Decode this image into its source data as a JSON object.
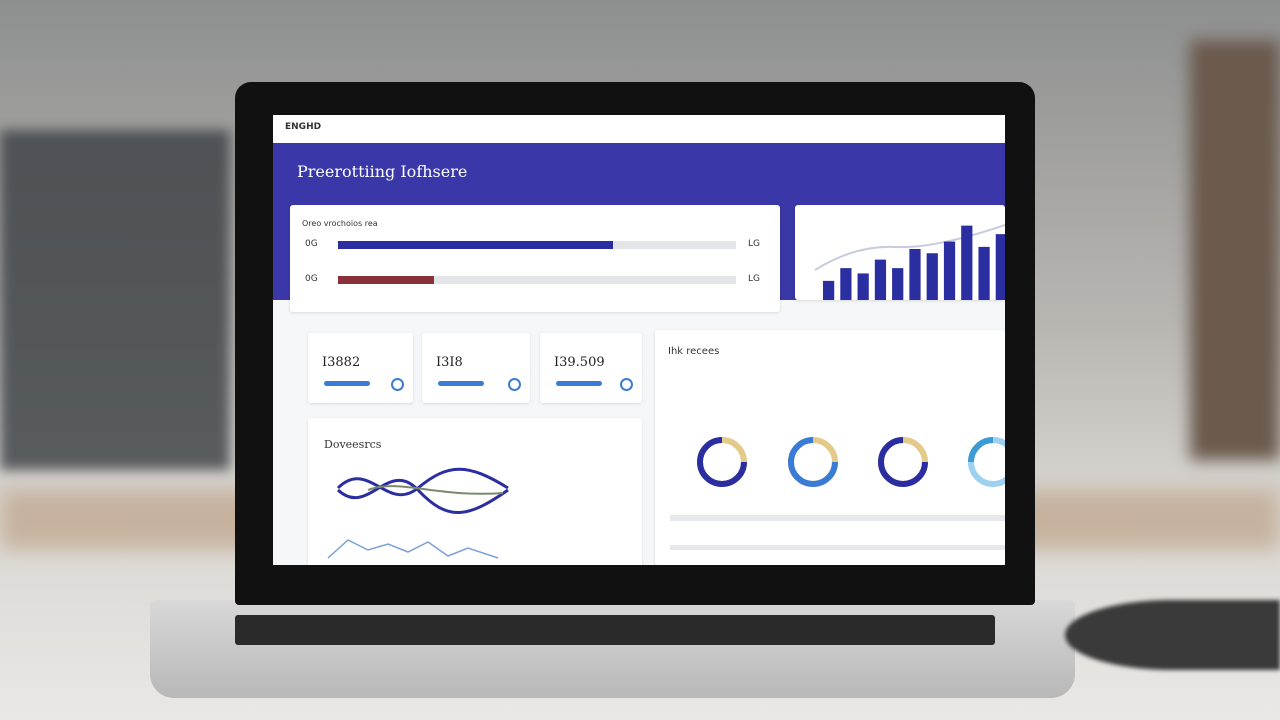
{
  "header": {
    "logo": "ENGHD",
    "title": "Preerottiing Iofhsere"
  },
  "progress_panel": {
    "title": "Oreo vrochoios rea",
    "labels": [
      "0G",
      "0G"
    ],
    "right_labels": [
      "LG",
      "LG"
    ],
    "values": [
      69,
      24
    ],
    "max": 100
  },
  "bar_panel": {
    "values": [
      18,
      30,
      25,
      38,
      30,
      48,
      44,
      55,
      70,
      50,
      62
    ],
    "max": 80
  },
  "stats": [
    "I3882",
    "I3I8",
    "I39.509"
  ],
  "wave_panel": {
    "title": "Doveesrcs"
  },
  "resources_panel": {
    "title": "Ihk recees"
  }
}
